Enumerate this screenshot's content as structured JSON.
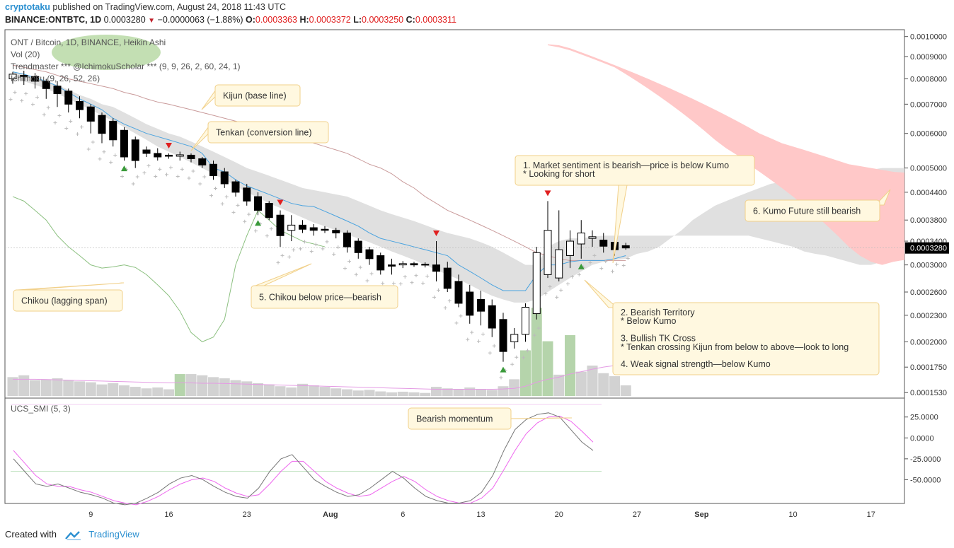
{
  "header": {
    "user": "cryptotaku",
    "published_text": "published on TradingView.com, August 24, 2018 11:43 UTC",
    "symbol": "BINANCE:ONTBTC, 1D",
    "last": "0.0003280",
    "change": "−0.0000063 (−1.88%)",
    "o_label": "O:",
    "o": "0.0003363",
    "h_label": "H:",
    "h": "0.0003372",
    "l_label": "L:",
    "l": "0.0003250",
    "c_label": "C:",
    "c": "0.0003311"
  },
  "legend": {
    "title": "ONT / Bitcoin, 1D, BINANCE, Heikin Ashi",
    "vol": "Vol (20)",
    "trendmaster": "Trendmaster *** @IchimokuScholar *** (9, 9, 26, 2, 60, 24, 1)",
    "ichimoku": "Ichimoku (9, 26, 52, 26)"
  },
  "osc_legend": "UCS_SMI (5, 3)",
  "footer": {
    "created_with": "Created with",
    "brand": "TradingView"
  },
  "colors": {
    "bull": "#ffffff",
    "bear": "#000000",
    "kumo_bear": "#ffc8c8",
    "kumo_bull": "#e0e0e0",
    "tenkan": "#4aa3df",
    "kijun": "#c99a9a",
    "chikou": "#8cc080",
    "vol_gray": "#d2d2d2",
    "vol_green": "#b5d4ab",
    "smi": "#777777",
    "smi_signal": "#ee66ee",
    "note_bg": "#fff8e0",
    "note_border": "#f1d08a",
    "up_marker": "#3a9a3a",
    "down_marker": "#e02020"
  },
  "chart_data": {
    "type": "candlestick",
    "series_style": "Heikin Ashi",
    "y_axis": {
      "scale": "log",
      "range": [
        0.000152,
        0.00101
      ],
      "tick_labels": [
        "0.0010000",
        "0.0009000",
        "0.0008000",
        "0.0007000",
        "0.0006000",
        "0.0005000",
        "0.0004400",
        "0.0003800",
        "0.0003400",
        "0.0003000",
        "0.0002600",
        "0.0002300",
        "0.0002000",
        "0.0001750",
        "0.0001530"
      ],
      "last_price_label": "0.0003280"
    },
    "x_axis": {
      "tick_labels": [
        "9",
        "16",
        "23",
        "Aug",
        "6",
        "13",
        "20",
        "27",
        "Sep",
        "10",
        "17"
      ]
    },
    "candles_ohlc": [
      [
        0.0008,
        0.00083,
        0.00078,
        0.00082
      ],
      [
        0.000815,
        0.000835,
        0.000775,
        0.00081
      ],
      [
        0.00081,
        0.000825,
        0.00076,
        0.00079
      ],
      [
        0.00079,
        0.0008,
        0.00072,
        0.00076
      ],
      [
        0.00077,
        0.00079,
        0.00069,
        0.00074
      ],
      [
        0.00075,
        0.00076,
        0.00067,
        0.0007
      ],
      [
        0.00071,
        0.00073,
        0.00065,
        0.00068
      ],
      [
        0.00069,
        0.0007,
        0.0006,
        0.00064
      ],
      [
        0.00066,
        0.00067,
        0.00057,
        0.0006
      ],
      [
        0.00064,
        0.00065,
        0.00056,
        0.00058
      ],
      [
        0.00061,
        0.00062,
        0.00052,
        0.00053
      ],
      [
        0.00058,
        0.00059,
        0.0005,
        0.00052
      ],
      [
        0.00055,
        0.00056,
        0.00053,
        0.00054
      ],
      [
        0.00054,
        0.000555,
        0.00052,
        0.00053
      ],
      [
        0.000535,
        0.00054,
        0.000525,
        0.000532
      ],
      [
        0.000532,
        0.000545,
        0.00052,
        0.000536
      ],
      [
        0.000535,
        0.00054,
        0.000515,
        0.000525
      ],
      [
        0.000525,
        0.00053,
        0.0005,
        0.000508
      ],
      [
        0.00051,
        0.00052,
        0.00047,
        0.00048
      ],
      [
        0.00049,
        0.0005,
        0.00045,
        0.00046
      ],
      [
        0.000465,
        0.00047,
        0.00043,
        0.00044
      ],
      [
        0.00045,
        0.00046,
        0.00041,
        0.00042
      ],
      [
        0.00043,
        0.00044,
        0.00039,
        0.0004
      ],
      [
        0.000415,
        0.00042,
        0.00038,
        0.000385
      ],
      [
        0.00039,
        0.0004,
        0.00033,
        0.00035
      ],
      [
        0.00036,
        0.00039,
        0.00034,
        0.00037
      ],
      [
        0.00037,
        0.00038,
        0.000355,
        0.000362
      ],
      [
        0.000365,
        0.000372,
        0.00035,
        0.00036
      ],
      [
        0.000362,
        0.000368,
        0.000355,
        0.00036
      ],
      [
        0.00036,
        0.000365,
        0.000345,
        0.000355
      ],
      [
        0.000355,
        0.00036,
        0.00032,
        0.00033
      ],
      [
        0.00034,
        0.000345,
        0.00031,
        0.00032
      ],
      [
        0.000325,
        0.00033,
        0.0003,
        0.00031
      ],
      [
        0.000315,
        0.00032,
        0.000285,
        0.000292
      ],
      [
        0.0003,
        0.00031,
        0.000285,
        0.000298
      ],
      [
        0.0003,
        0.000306,
        0.000295,
        0.000302
      ],
      [
        0.000302,
        0.000305,
        0.000297,
        0.0003
      ],
      [
        0.000301,
        0.000304,
        0.000296,
        0.0003
      ],
      [
        0.0003,
        0.00034,
        0.000275,
        0.00029
      ],
      [
        0.000295,
        0.000305,
        0.00026,
        0.000265
      ],
      [
        0.000275,
        0.000285,
        0.00024,
        0.000245
      ],
      [
        0.00026,
        0.00027,
        0.00022,
        0.00023
      ],
      [
        0.00025,
        0.000262,
        0.000218,
        0.000235
      ],
      [
        0.000242,
        0.00025,
        0.000205,
        0.000215
      ],
      [
        0.000225,
        0.000233,
        0.00018,
        0.00019
      ],
      [
        0.0002,
        0.000215,
        0.000193,
        0.000208
      ],
      [
        0.000208,
        0.000245,
        0.0002,
        0.00024
      ],
      [
        0.000232,
        0.00033,
        0.000225,
        0.00032
      ],
      [
        0.000285,
        0.00042,
        0.00028,
        0.00036
      ],
      [
        0.00028,
        0.0004,
        0.000275,
        0.000325
      ],
      [
        0.000315,
        0.00036,
        0.000295,
        0.00034
      ],
      [
        0.000335,
        0.00038,
        0.00031,
        0.000355
      ],
      [
        0.000345,
        0.00036,
        0.00033,
        0.000348
      ],
      [
        0.000342,
        0.000355,
        0.00032,
        0.000331
      ],
      [
        0.000338,
        0.000345,
        0.000315,
        0.000325
      ],
      [
        0.000332,
        0.000337,
        0.000325,
        0.000328
      ]
    ],
    "tenkan": [
      0.00083,
      0.00082,
      0.000805,
      0.00079,
      0.00077,
      0.000745,
      0.00072,
      0.0007,
      0.00068,
      0.00065,
      0.00063,
      0.000615,
      0.0006,
      0.00059,
      0.00058,
      0.00057,
      0.00056,
      0.00054,
      0.0005,
      0.00049,
      0.00047,
      0.000455,
      0.000445,
      0.000435,
      0.000425,
      0.000415,
      0.00041,
      0.000408,
      0.000398,
      0.000388,
      0.000378,
      0.000368,
      0.000355,
      0.000345,
      0.00034,
      0.000335,
      0.00033,
      0.000325,
      0.00032,
      0.000315,
      0.0003,
      0.00029,
      0.00028,
      0.00027,
      0.000262,
      0.000262,
      0.000262,
      0.000285,
      0.0003,
      0.0003,
      0.000305,
      0.000307,
      0.000307,
      0.000307,
      0.00031,
      0.000315
    ],
    "kijun": [
      0.00086,
      0.00085,
      0.00084,
      0.00083,
      0.000815,
      0.0008,
      0.00079,
      0.00078,
      0.00077,
      0.00076,
      0.000745,
      0.000735,
      0.00072,
      0.000708,
      0.0007,
      0.00069,
      0.00068,
      0.00067,
      0.00066,
      0.00065,
      0.00064,
      0.00063,
      0.00062,
      0.00061,
      0.0006,
      0.00059,
      0.00058,
      0.00057,
      0.00056,
      0.00055,
      0.00054,
      0.000525,
      0.00051,
      0.0005,
      0.000485,
      0.000465,
      0.00045,
      0.00043,
      0.000415,
      0.0004,
      0.00039,
      0.00038,
      0.00037,
      0.00036,
      0.00035,
      0.00034,
      0.00033,
      0.00032,
      0.000315,
      0.00031,
      0.000307,
      0.000307,
      0.000307,
      0.000307,
      0.000307,
      0.000307
    ],
    "chikou": [
      0.00043,
      0.00042,
      0.0004,
      0.00038,
      0.00035,
      0.00033,
      0.000315,
      0.0003,
      0.000295,
      0.000297,
      0.0003,
      0.000296,
      0.000285,
      0.00027,
      0.000255,
      0.000235,
      0.00021,
      0.0002,
      0.000205,
      0.000225,
      0.0003,
      0.00035,
      0.0004,
      0.00038,
      0.00036,
      0.00035,
      0.00034,
      0.000335,
      0.00033
    ],
    "kumo_upper": [
      0.00083,
      0.00082,
      0.000805,
      0.00079,
      0.000775,
      0.000755,
      0.000735,
      0.00072,
      0.0007,
      0.00069,
      0.00067,
      0.00065,
      0.00063,
      0.000615,
      0.0006,
      0.00059,
      0.000575,
      0.00056,
      0.000545,
      0.00053,
      0.000515,
      0.0005,
      0.00049,
      0.00048,
      0.00047,
      0.00046,
      0.00045,
      0.000445,
      0.00044,
      0.000435,
      0.00043,
      0.00042,
      0.00041,
      0.0004,
      0.000392,
      0.000385,
      0.000378,
      0.00037,
      0.000362,
      0.000355,
      0.00035,
      0.000345,
      0.000338,
      0.00033,
      0.00032,
      0.00031,
      0.0003,
      0.0003,
      0.00033,
      0.00034,
      0.000345,
      0.000345,
      0.000348,
      0.00035,
      0.00035,
      0.00035,
      0.00035,
      0.00035,
      0.00035,
      0.00035,
      0.00035,
      0.00035,
      0.00035,
      0.00035,
      0.00035,
      0.00035,
      0.00035,
      0.000345,
      0.00034,
      0.000335,
      0.00033,
      0.000322,
      0.000318,
      0.000315,
      0.00031,
      0.000305,
      0.0003,
      0.0003,
      0.000305,
      0.00031,
      0.00032,
      0.00033
    ],
    "kumo_lower": [
      0.0008,
      0.00079,
      0.000775,
      0.00076,
      0.00074,
      0.00072,
      0.0007,
      0.00068,
      0.00066,
      0.00064,
      0.00062,
      0.0006,
      0.00058,
      0.00056,
      0.000545,
      0.00053,
      0.000515,
      0.0005,
      0.000485,
      0.00047,
      0.000455,
      0.00044,
      0.000428,
      0.000415,
      0.000405,
      0.000395,
      0.000385,
      0.000375,
      0.000368,
      0.00036,
      0.000352,
      0.000345,
      0.000338,
      0.00033,
      0.000322,
      0.000315,
      0.000308,
      0.0003,
      0.000292,
      0.000285,
      0.000278,
      0.00027,
      0.000262,
      0.000255,
      0.00025,
      0.000246,
      0.000246,
      0.00025,
      0.00026,
      0.00027,
      0.00028,
      0.00029,
      0.0003,
      0.000305,
      0.000308,
      0.00031,
      0.000318,
      0.000322,
      0.00033,
      0.000345,
      0.00036,
      0.00038,
      0.000395,
      0.00041,
      0.00042,
      0.00043,
      0.00044,
      0.00045,
      0.00046,
      0.000465,
      0.00047,
      0.000475,
      0.00048,
      0.00048,
      0.000485,
      0.00049,
      0.000495,
      0.000495,
      0.0005,
      0.0005,
      0.0005
    ],
    "kumo_future_top": [
      0.00096,
      0.000955,
      0.00094,
      0.00092,
      0.0009,
      0.00088,
      0.00086,
      0.00084,
      0.00082,
      0.0008,
      0.00078,
      0.00076,
      0.00074,
      0.00072,
      0.0007,
      0.00068,
      0.00066,
      0.00064,
      0.00062,
      0.0006,
      0.000585,
      0.00057,
      0.00056,
      0.00055,
      0.00054,
      0.00053,
      0.00052,
      0.00051,
      0.000505,
      0.0005,
      0.000495,
      0.00049,
      0.000488
    ],
    "kumo_future_bottom": [
      0.000955,
      0.000945,
      0.00093,
      0.00091,
      0.00089,
      0.00087,
      0.00085,
      0.00082,
      0.00079,
      0.00076,
      0.00073,
      0.0007,
      0.00067,
      0.00064,
      0.00061,
      0.00058,
      0.000555,
      0.000535,
      0.00051,
      0.00049,
      0.00047,
      0.00045,
      0.00043,
      0.00041,
      0.00039,
      0.00037,
      0.00035,
      0.00033,
      0.000315,
      0.000305,
      0.0003,
      0.000305,
      0.000308
    ],
    "volume": [
      0.62,
      0.68,
      0.52,
      0.55,
      0.58,
      0.52,
      0.48,
      0.45,
      0.38,
      0.42,
      0.35,
      0.3,
      0.25,
      0.28,
      0.22,
      0.72,
      0.72,
      0.68,
      0.62,
      0.58,
      0.52,
      0.48,
      0.42,
      0.38,
      0.32,
      0.28,
      0.4,
      0.35,
      0.3,
      0.25,
      0.22,
      0.18,
      0.2,
      0.15,
      0.12,
      0.14,
      0.12,
      0.1,
      0.3,
      0.25,
      0.22,
      0.28,
      0.22,
      0.2,
      0.32,
      0.55,
      1.5,
      2.9,
      1.8,
      0.7,
      2.0,
      0.8,
      1.0,
      0.75,
      0.65,
      0.35
    ],
    "volume_green_idx": [
      15,
      46,
      47,
      48,
      50
    ],
    "volume_ma": [
      0.55,
      0.55,
      0.55,
      0.54,
      0.53,
      0.52,
      0.51,
      0.5,
      0.49,
      0.48,
      0.47,
      0.46,
      0.45,
      0.44,
      0.43,
      0.43,
      0.43,
      0.42,
      0.42,
      0.41,
      0.4,
      0.39,
      0.38,
      0.37,
      0.36,
      0.35,
      0.34,
      0.33,
      0.32,
      0.31,
      0.3,
      0.29,
      0.28,
      0.27,
      0.26,
      0.25,
      0.24,
      0.23,
      0.22,
      0.22,
      0.22,
      0.22,
      0.22,
      0.22,
      0.23,
      0.25,
      0.32,
      0.45,
      0.55,
      0.62,
      0.72,
      0.8,
      0.88,
      0.95,
      1.0,
      1.02
    ],
    "smi": [
      -25,
      -40,
      -55,
      -58,
      -55,
      -60,
      -65,
      -68,
      -72,
      -78,
      -80,
      -78,
      -72,
      -65,
      -55,
      -48,
      -45,
      -50,
      -58,
      -65,
      -70,
      -72,
      -60,
      -40,
      -25,
      -20,
      -35,
      -50,
      -58,
      -65,
      -70,
      -68,
      -60,
      -50,
      -40,
      -48,
      -60,
      -70,
      -75,
      -78,
      -78,
      -75,
      -65,
      -45,
      -15,
      10,
      22,
      28,
      30,
      25,
      10,
      -5,
      -15
    ],
    "smi_signal": [
      -15,
      -30,
      -45,
      -55,
      -58,
      -58,
      -62,
      -65,
      -70,
      -75,
      -78,
      -80,
      -76,
      -70,
      -62,
      -55,
      -50,
      -48,
      -52,
      -60,
      -66,
      -70,
      -68,
      -55,
      -40,
      -28,
      -28,
      -40,
      -52,
      -60,
      -66,
      -70,
      -68,
      -60,
      -52,
      -46,
      -52,
      -62,
      -70,
      -75,
      -78,
      -78,
      -72,
      -60,
      -38,
      -15,
      5,
      18,
      25,
      26,
      20,
      8,
      -5
    ],
    "smi_axis": {
      "range": [
        -75,
        40
      ],
      "tick_labels": [
        "25.0000",
        "0.0000",
        "-25.0000",
        "-50.0000"
      ]
    },
    "up_markers_idx": [
      10,
      22,
      44,
      51
    ],
    "down_markers_idx": [
      14,
      24,
      38,
      48
    ],
    "annotations": [
      {
        "id": "kijun",
        "text": "Kijun (base line)"
      },
      {
        "id": "tenkan",
        "text": "Tenkan (conversion line)"
      },
      {
        "id": "sentiment",
        "lines": [
          "1. Market sentiment is bearish—price is below Kumo",
          "* Looking for short"
        ]
      },
      {
        "id": "future",
        "text": "6. Kumo Future still bearish"
      },
      {
        "id": "chikou",
        "text": "Chikou (lagging span)"
      },
      {
        "id": "chikou_below",
        "text": "5. Chikou below price—bearish"
      },
      {
        "id": "territory",
        "lines": [
          "2. Bearish Territory",
          "* Below Kumo",
          "",
          "3. Bullish TK Cross",
          "* Tenkan crossing Kijun from below to above—look to long",
          "",
          "4. Weak signal strength—below Kumo"
        ]
      },
      {
        "id": "momentum",
        "text": "Bearish momentum"
      }
    ]
  }
}
